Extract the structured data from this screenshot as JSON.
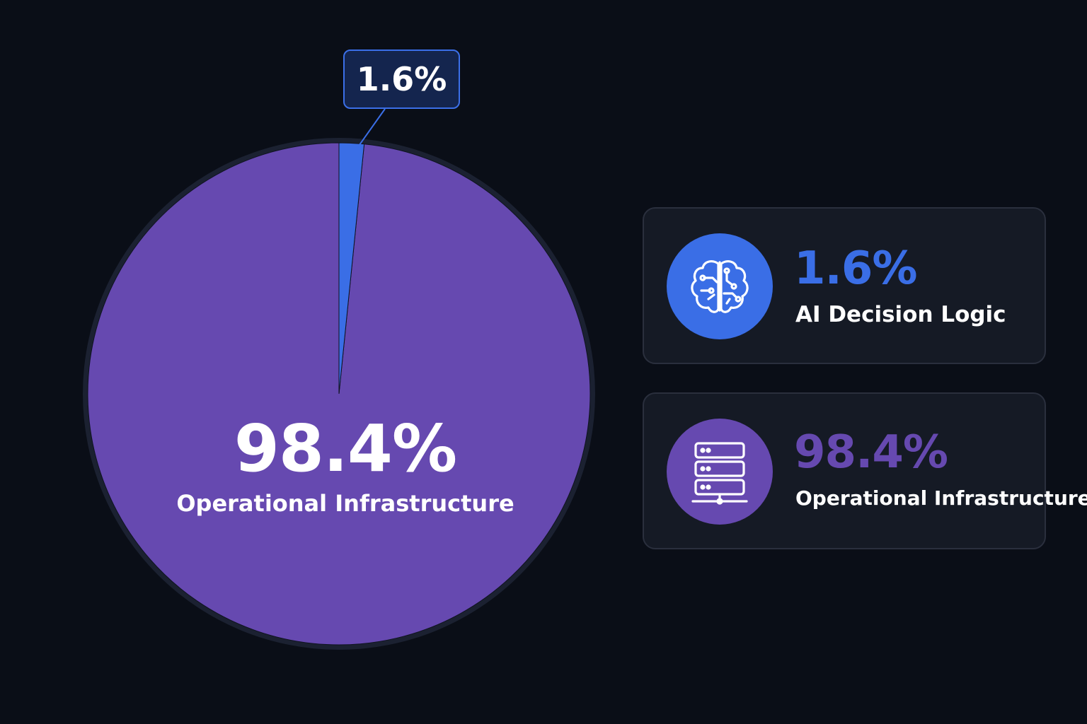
{
  "chart_data": {
    "type": "pie",
    "slices": [
      {
        "label": "AI Decision Logic",
        "value": 1.6,
        "display": "1.6%",
        "color": "#3a6ee6"
      },
      {
        "label": "Operational Infrastructure",
        "value": 98.4,
        "display": "98.4%",
        "color": "#6649b0"
      }
    ]
  },
  "pie": {
    "callout_text": "1.6%",
    "center_value": "98.4%",
    "center_label": "Operational Infrastructure"
  },
  "legend": {
    "cards": [
      {
        "value": "1.6%",
        "label": "AI Decision Logic",
        "icon": "brain-circuit-icon",
        "color": "#3a6ee6"
      },
      {
        "value": "98.4%",
        "label": "Operational Infrastructure",
        "icon": "server-rack-icon",
        "color": "#6649b0"
      }
    ]
  }
}
